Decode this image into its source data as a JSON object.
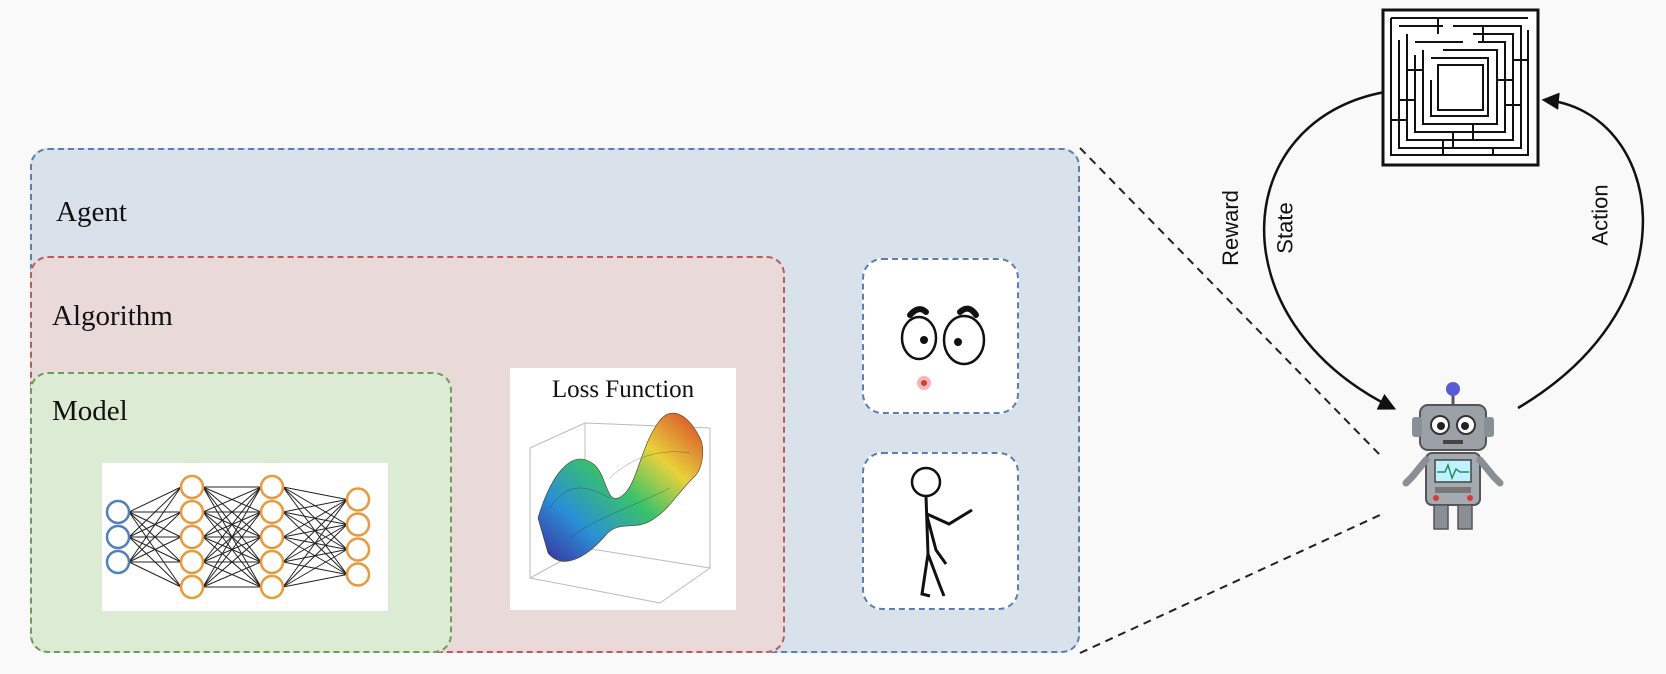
{
  "agent": {
    "label": "Agent"
  },
  "algorithm": {
    "label": "Algorithm"
  },
  "model": {
    "label": "Model"
  },
  "loss_function": {
    "label": "Loss Function"
  },
  "loop": {
    "reward": "Reward",
    "state": "State",
    "action": "Action"
  },
  "colors": {
    "agent_fill": "#d9e2ea",
    "agent_border": "#5b7fb4",
    "algorithm_fill": "#ead9d9",
    "algorithm_border": "#b45d62",
    "model_fill": "#dcebd4",
    "model_border": "#6f9c58",
    "input_nodes": "#4f7fbd",
    "hidden_nodes": "#e8993a"
  },
  "icons": [
    "neural-network-icon",
    "loss-surface-icon",
    "cartoon-eyes-icon",
    "stick-figure-icon",
    "maze-icon",
    "robot-icon"
  ]
}
